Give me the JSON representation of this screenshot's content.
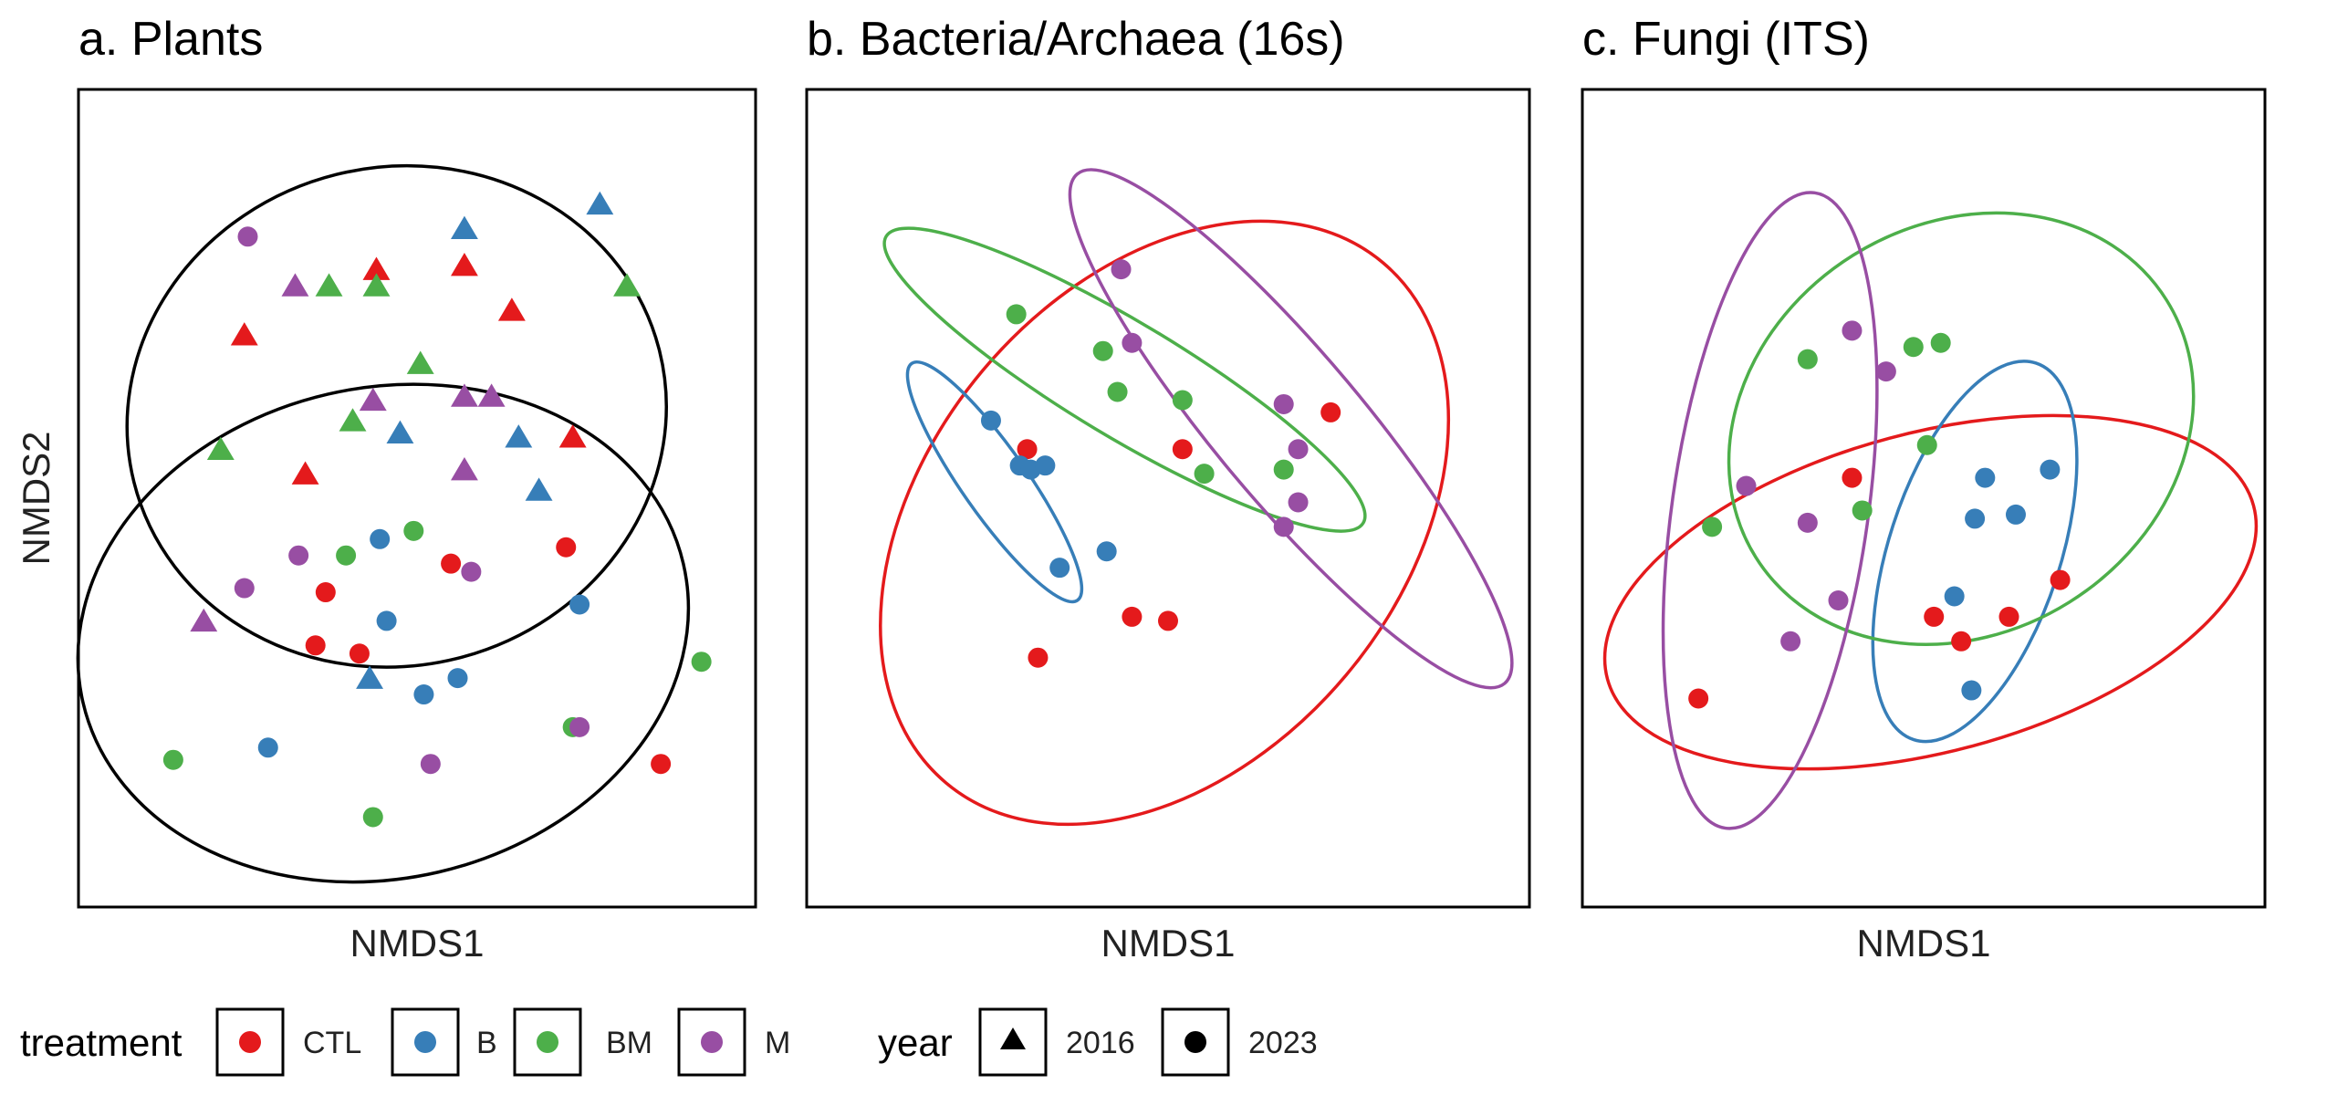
{
  "chart_data": [
    {
      "type": "scatter",
      "title": "a. Plants",
      "xlabel": "NMDS1",
      "ylabel": "NMDS2",
      "xlim": [
        0,
        1
      ],
      "ylim": [
        0,
        1
      ],
      "grid": false,
      "ellipses": [
        {
          "group": "2016",
          "cx": 0.47,
          "cy": 0.6,
          "rx": 0.4,
          "ry": 0.305,
          "angle": -14
        },
        {
          "group": "2023",
          "cx": 0.45,
          "cy": 0.335,
          "rx": 0.455,
          "ry": 0.3,
          "angle": -13
        }
      ],
      "points": [
        {
          "x": 0.25,
          "y": 0.82,
          "treatment": "M",
          "year": "2023"
        },
        {
          "x": 0.57,
          "y": 0.83,
          "treatment": "B",
          "year": "2016"
        },
        {
          "x": 0.77,
          "y": 0.86,
          "treatment": "B",
          "year": "2016"
        },
        {
          "x": 0.44,
          "y": 0.78,
          "treatment": "CTL",
          "year": "2016"
        },
        {
          "x": 0.57,
          "y": 0.785,
          "treatment": "CTL",
          "year": "2016"
        },
        {
          "x": 0.32,
          "y": 0.76,
          "treatment": "M",
          "year": "2016"
        },
        {
          "x": 0.37,
          "y": 0.76,
          "treatment": "BM",
          "year": "2016"
        },
        {
          "x": 0.44,
          "y": 0.76,
          "treatment": "BM",
          "year": "2016"
        },
        {
          "x": 0.81,
          "y": 0.76,
          "treatment": "BM",
          "year": "2016"
        },
        {
          "x": 0.64,
          "y": 0.73,
          "treatment": "CTL",
          "year": "2016"
        },
        {
          "x": 0.245,
          "y": 0.7,
          "treatment": "CTL",
          "year": "2016"
        },
        {
          "x": 0.505,
          "y": 0.665,
          "treatment": "BM",
          "year": "2016"
        },
        {
          "x": 0.435,
          "y": 0.62,
          "treatment": "M",
          "year": "2016"
        },
        {
          "x": 0.57,
          "y": 0.625,
          "treatment": "M",
          "year": "2016"
        },
        {
          "x": 0.61,
          "y": 0.625,
          "treatment": "M",
          "year": "2016"
        },
        {
          "x": 0.405,
          "y": 0.595,
          "treatment": "BM",
          "year": "2016"
        },
        {
          "x": 0.475,
          "y": 0.58,
          "treatment": "B",
          "year": "2016"
        },
        {
          "x": 0.65,
          "y": 0.575,
          "treatment": "B",
          "year": "2016"
        },
        {
          "x": 0.73,
          "y": 0.575,
          "treatment": "CTL",
          "year": "2016"
        },
        {
          "x": 0.21,
          "y": 0.56,
          "treatment": "BM",
          "year": "2016"
        },
        {
          "x": 0.335,
          "y": 0.53,
          "treatment": "CTL",
          "year": "2016"
        },
        {
          "x": 0.57,
          "y": 0.535,
          "treatment": "M",
          "year": "2016"
        },
        {
          "x": 0.68,
          "y": 0.51,
          "treatment": "B",
          "year": "2016"
        },
        {
          "x": 0.495,
          "y": 0.46,
          "treatment": "BM",
          "year": "2023"
        },
        {
          "x": 0.445,
          "y": 0.45,
          "treatment": "B",
          "year": "2023"
        },
        {
          "x": 0.325,
          "y": 0.43,
          "treatment": "M",
          "year": "2023"
        },
        {
          "x": 0.395,
          "y": 0.43,
          "treatment": "BM",
          "year": "2023"
        },
        {
          "x": 0.72,
          "y": 0.44,
          "treatment": "CTL",
          "year": "2023"
        },
        {
          "x": 0.55,
          "y": 0.42,
          "treatment": "CTL",
          "year": "2023"
        },
        {
          "x": 0.58,
          "y": 0.41,
          "treatment": "M",
          "year": "2023"
        },
        {
          "x": 0.245,
          "y": 0.39,
          "treatment": "M",
          "year": "2023"
        },
        {
          "x": 0.365,
          "y": 0.385,
          "treatment": "CTL",
          "year": "2023"
        },
        {
          "x": 0.74,
          "y": 0.37,
          "treatment": "B",
          "year": "2023"
        },
        {
          "x": 0.185,
          "y": 0.35,
          "treatment": "M",
          "year": "2016"
        },
        {
          "x": 0.455,
          "y": 0.35,
          "treatment": "B",
          "year": "2023"
        },
        {
          "x": 0.35,
          "y": 0.32,
          "treatment": "CTL",
          "year": "2023"
        },
        {
          "x": 0.415,
          "y": 0.31,
          "treatment": "CTL",
          "year": "2023"
        },
        {
          "x": 0.92,
          "y": 0.3,
          "treatment": "BM",
          "year": "2023"
        },
        {
          "x": 0.43,
          "y": 0.28,
          "treatment": "B",
          "year": "2016"
        },
        {
          "x": 0.56,
          "y": 0.28,
          "treatment": "B",
          "year": "2023"
        },
        {
          "x": 0.51,
          "y": 0.26,
          "treatment": "B",
          "year": "2023"
        },
        {
          "x": 0.73,
          "y": 0.22,
          "treatment": "BM",
          "year": "2023"
        },
        {
          "x": 0.74,
          "y": 0.22,
          "treatment": "M",
          "year": "2023"
        },
        {
          "x": 0.28,
          "y": 0.195,
          "treatment": "B",
          "year": "2023"
        },
        {
          "x": 0.14,
          "y": 0.18,
          "treatment": "BM",
          "year": "2023"
        },
        {
          "x": 0.52,
          "y": 0.175,
          "treatment": "M",
          "year": "2023"
        },
        {
          "x": 0.86,
          "y": 0.175,
          "treatment": "CTL",
          "year": "2023"
        },
        {
          "x": 0.435,
          "y": 0.11,
          "treatment": "BM",
          "year": "2023"
        }
      ]
    },
    {
      "type": "scatter",
      "title": "b. Bacteria/Archaea (16s)",
      "xlabel": "NMDS1",
      "ylabel": "",
      "xlim": [
        0,
        1
      ],
      "ylim": [
        0,
        1
      ],
      "grid": false,
      "ellipses": [
        {
          "group": "CTL",
          "cx": 0.495,
          "cy": 0.47,
          "rx": 0.47,
          "ry": 0.29,
          "angle": -50
        },
        {
          "group": "B",
          "cx": 0.26,
          "cy": 0.52,
          "rx": 0.2,
          "ry": 0.04,
          "angle": 55
        },
        {
          "group": "BM",
          "cx": 0.44,
          "cy": 0.645,
          "rx": 0.385,
          "ry": 0.07,
          "angle": 31
        },
        {
          "group": "M",
          "cx": 0.67,
          "cy": 0.585,
          "rx": 0.46,
          "ry": 0.09,
          "angle": 50
        }
      ],
      "points": [
        {
          "x": 0.435,
          "y": 0.78,
          "treatment": "M",
          "year": "2023"
        },
        {
          "x": 0.29,
          "y": 0.725,
          "treatment": "BM",
          "year": "2023"
        },
        {
          "x": 0.45,
          "y": 0.69,
          "treatment": "M",
          "year": "2023"
        },
        {
          "x": 0.41,
          "y": 0.68,
          "treatment": "BM",
          "year": "2023"
        },
        {
          "x": 0.43,
          "y": 0.63,
          "treatment": "BM",
          "year": "2023"
        },
        {
          "x": 0.52,
          "y": 0.62,
          "treatment": "BM",
          "year": "2023"
        },
        {
          "x": 0.66,
          "y": 0.615,
          "treatment": "M",
          "year": "2023"
        },
        {
          "x": 0.725,
          "y": 0.605,
          "treatment": "CTL",
          "year": "2023"
        },
        {
          "x": 0.255,
          "y": 0.595,
          "treatment": "B",
          "year": "2023"
        },
        {
          "x": 0.305,
          "y": 0.56,
          "treatment": "CTL",
          "year": "2023"
        },
        {
          "x": 0.52,
          "y": 0.56,
          "treatment": "CTL",
          "year": "2023"
        },
        {
          "x": 0.68,
          "y": 0.56,
          "treatment": "M",
          "year": "2023"
        },
        {
          "x": 0.295,
          "y": 0.54,
          "treatment": "B",
          "year": "2023"
        },
        {
          "x": 0.31,
          "y": 0.535,
          "treatment": "B",
          "year": "2023"
        },
        {
          "x": 0.33,
          "y": 0.54,
          "treatment": "B",
          "year": "2023"
        },
        {
          "x": 0.55,
          "y": 0.53,
          "treatment": "BM",
          "year": "2023"
        },
        {
          "x": 0.66,
          "y": 0.535,
          "treatment": "BM",
          "year": "2023"
        },
        {
          "x": 0.68,
          "y": 0.495,
          "treatment": "M",
          "year": "2023"
        },
        {
          "x": 0.66,
          "y": 0.465,
          "treatment": "M",
          "year": "2023"
        },
        {
          "x": 0.415,
          "y": 0.435,
          "treatment": "B",
          "year": "2023"
        },
        {
          "x": 0.35,
          "y": 0.415,
          "treatment": "B",
          "year": "2023"
        },
        {
          "x": 0.45,
          "y": 0.355,
          "treatment": "CTL",
          "year": "2023"
        },
        {
          "x": 0.5,
          "y": 0.35,
          "treatment": "CTL",
          "year": "2023"
        },
        {
          "x": 0.32,
          "y": 0.305,
          "treatment": "CTL",
          "year": "2023"
        }
      ]
    },
    {
      "type": "scatter",
      "title": "c. Fungi (ITS)",
      "xlabel": "NMDS1",
      "ylabel": "",
      "xlim": [
        0,
        1
      ],
      "ylim": [
        0,
        1
      ],
      "grid": false,
      "ellipses": [
        {
          "group": "CTL",
          "cx": 0.51,
          "cy": 0.385,
          "rx": 0.49,
          "ry": 0.195,
          "angle": -15
        },
        {
          "group": "B",
          "cx": 0.575,
          "cy": 0.435,
          "rx": 0.29,
          "ry": 0.105,
          "angle": -72
        },
        {
          "group": "BM",
          "cx": 0.555,
          "cy": 0.585,
          "rx": 0.355,
          "ry": 0.25,
          "angle": -32
        },
        {
          "group": "M",
          "cx": 0.275,
          "cy": 0.485,
          "rx": 0.47,
          "ry": 0.12,
          "angle": -82
        }
      ],
      "points": [
        {
          "x": 0.395,
          "y": 0.705,
          "treatment": "M",
          "year": "2023"
        },
        {
          "x": 0.485,
          "y": 0.685,
          "treatment": "BM",
          "year": "2023"
        },
        {
          "x": 0.525,
          "y": 0.69,
          "treatment": "BM",
          "year": "2023"
        },
        {
          "x": 0.33,
          "y": 0.67,
          "treatment": "BM",
          "year": "2023"
        },
        {
          "x": 0.445,
          "y": 0.655,
          "treatment": "M",
          "year": "2023"
        },
        {
          "x": 0.505,
          "y": 0.565,
          "treatment": "BM",
          "year": "2023"
        },
        {
          "x": 0.685,
          "y": 0.535,
          "treatment": "B",
          "year": "2023"
        },
        {
          "x": 0.59,
          "y": 0.525,
          "treatment": "B",
          "year": "2023"
        },
        {
          "x": 0.395,
          "y": 0.525,
          "treatment": "CTL",
          "year": "2023"
        },
        {
          "x": 0.24,
          "y": 0.515,
          "treatment": "M",
          "year": "2023"
        },
        {
          "x": 0.41,
          "y": 0.485,
          "treatment": "BM",
          "year": "2023"
        },
        {
          "x": 0.635,
          "y": 0.48,
          "treatment": "B",
          "year": "2023"
        },
        {
          "x": 0.33,
          "y": 0.47,
          "treatment": "M",
          "year": "2023"
        },
        {
          "x": 0.575,
          "y": 0.475,
          "treatment": "B",
          "year": "2023"
        },
        {
          "x": 0.19,
          "y": 0.465,
          "treatment": "BM",
          "year": "2023"
        },
        {
          "x": 0.7,
          "y": 0.4,
          "treatment": "CTL",
          "year": "2023"
        },
        {
          "x": 0.375,
          "y": 0.375,
          "treatment": "M",
          "year": "2023"
        },
        {
          "x": 0.545,
          "y": 0.38,
          "treatment": "B",
          "year": "2023"
        },
        {
          "x": 0.515,
          "y": 0.355,
          "treatment": "CTL",
          "year": "2023"
        },
        {
          "x": 0.625,
          "y": 0.355,
          "treatment": "CTL",
          "year": "2023"
        },
        {
          "x": 0.305,
          "y": 0.325,
          "treatment": "M",
          "year": "2023"
        },
        {
          "x": 0.555,
          "y": 0.325,
          "treatment": "CTL",
          "year": "2023"
        },
        {
          "x": 0.57,
          "y": 0.265,
          "treatment": "B",
          "year": "2023"
        },
        {
          "x": 0.17,
          "y": 0.255,
          "treatment": "CTL",
          "year": "2023"
        }
      ]
    }
  ],
  "colors": {
    "CTL": "#e41a1c",
    "B": "#377eb8",
    "BM": "#4daf4a",
    "M": "#984ea3",
    "year_ellipse": "#000000"
  },
  "legend": {
    "treatment_title": "treatment",
    "treatment_items": [
      {
        "key": "CTL",
        "label": "CTL"
      },
      {
        "key": "B",
        "label": "B"
      },
      {
        "key": "BM",
        "label": "BM"
      },
      {
        "key": "M",
        "label": "M"
      }
    ],
    "year_title": "year",
    "year_items": [
      {
        "key": "2016",
        "label": "2016",
        "shape": "triangle"
      },
      {
        "key": "2023",
        "label": "2023",
        "shape": "circle"
      }
    ]
  }
}
